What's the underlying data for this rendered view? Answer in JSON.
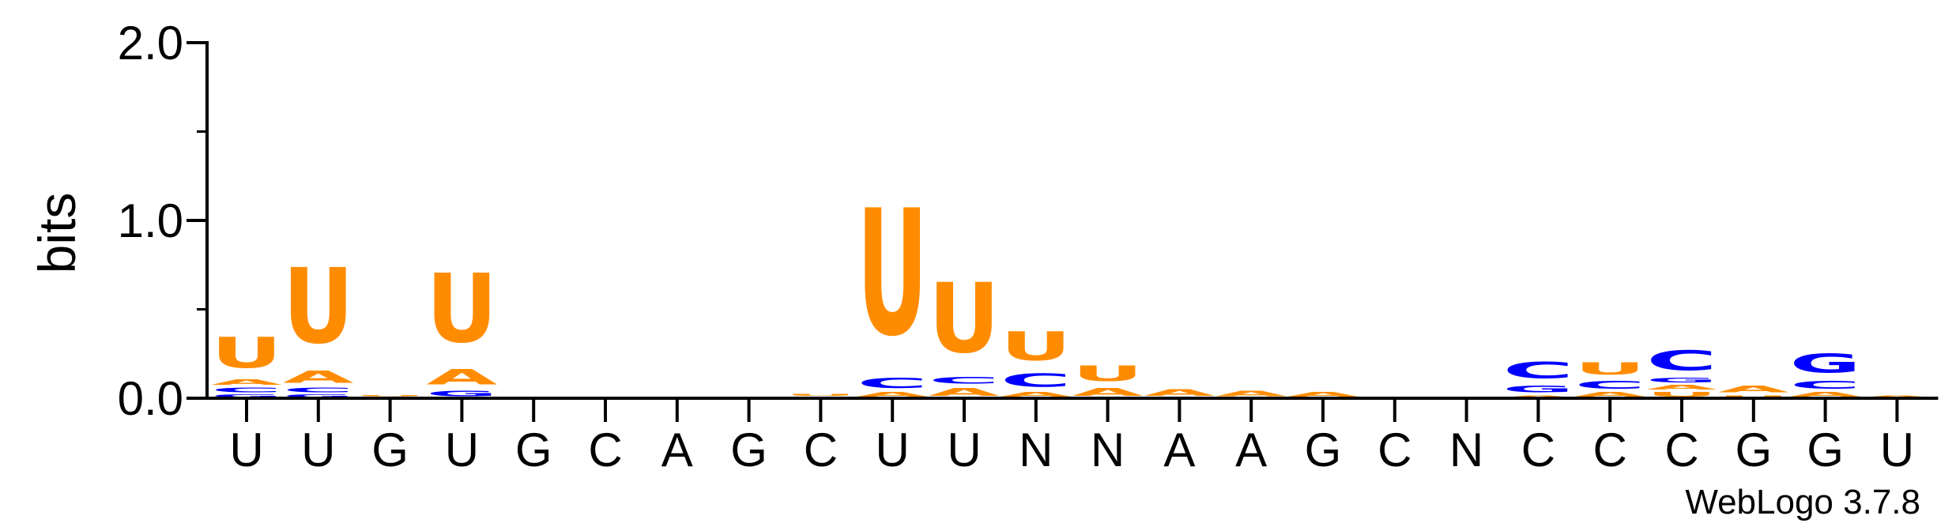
{
  "chart_data": {
    "type": "sequence-logo",
    "ylabel": "bits",
    "ylim": [
      0,
      2.0
    ],
    "yticks": [
      "0.0",
      "1.0",
      "2.0"
    ],
    "x_labels": [
      "U",
      "U",
      "G",
      "U",
      "G",
      "C",
      "A",
      "G",
      "C",
      "U",
      "U",
      "N",
      "N",
      "A",
      "A",
      "G",
      "C",
      "N",
      "C",
      "C",
      "C",
      "G",
      "G",
      "U"
    ],
    "credit": "WebLogo 3.7.8",
    "colors": {
      "U": "#ff8c00",
      "A": "#ff8c00",
      "C": "#0000ff",
      "G": "#0000ff"
    },
    "stacks": [
      [
        {
          "l": "G",
          "h": 0.025
        },
        {
          "l": "C",
          "h": 0.04
        },
        {
          "l": "A",
          "h": 0.05
        },
        {
          "l": "U",
          "h": 0.28
        }
      ],
      [
        {
          "l": "G",
          "h": 0.025
        },
        {
          "l": "C",
          "h": 0.04
        },
        {
          "l": "A",
          "h": 0.11
        },
        {
          "l": "U",
          "h": 0.68
        }
      ],
      [
        {
          "l": "C",
          "h": 0.01
        },
        {
          "l": "U",
          "h": 0.01
        }
      ],
      [
        {
          "l": "G",
          "h": 0.05
        },
        {
          "l": "A",
          "h": 0.14
        },
        {
          "l": "U",
          "h": 0.62
        }
      ],
      [],
      [],
      [
        {
          "l": "A",
          "h": 0.01
        }
      ],
      [],
      [
        {
          "l": "A",
          "h": 0.01
        },
        {
          "l": "U",
          "h": 0.02
        }
      ],
      [
        {
          "l": "A",
          "h": 0.04
        },
        {
          "l": "C",
          "h": 0.09
        },
        {
          "l": "U",
          "h": 1.14
        }
      ],
      [
        {
          "l": "A",
          "h": 0.07
        },
        {
          "l": "C",
          "h": 0.06
        },
        {
          "l": "U",
          "h": 0.63
        }
      ],
      [
        {
          "l": "A",
          "h": 0.04
        },
        {
          "l": "C",
          "h": 0.12
        },
        {
          "l": "U",
          "h": 0.26
        }
      ],
      [
        {
          "l": "A",
          "h": 0.07
        },
        {
          "l": "U",
          "h": 0.14
        }
      ],
      [
        {
          "l": "A",
          "h": 0.06
        }
      ],
      [
        {
          "l": "A",
          "h": 0.05
        }
      ],
      [
        {
          "l": "A",
          "h": 0.04
        }
      ],
      [],
      [],
      [
        {
          "l": "A",
          "h": 0.02
        },
        {
          "l": "G",
          "h": 0.06
        },
        {
          "l": "C",
          "h": 0.15
        }
      ],
      [
        {
          "l": "A",
          "h": 0.04
        },
        {
          "l": "C",
          "h": 0.07
        },
        {
          "l": "U",
          "h": 0.11
        }
      ],
      [
        {
          "l": "U",
          "h": 0.04
        },
        {
          "l": "A",
          "h": 0.04
        },
        {
          "l": "G",
          "h": 0.04
        },
        {
          "l": "C",
          "h": 0.18
        }
      ],
      [
        {
          "l": "U",
          "h": 0.02
        },
        {
          "l": "A",
          "h": 0.06
        }
      ],
      [
        {
          "l": "A",
          "h": 0.04
        },
        {
          "l": "C",
          "h": 0.07
        },
        {
          "l": "G",
          "h": 0.17
        }
      ],
      [
        {
          "l": "A",
          "h": 0.02
        }
      ]
    ]
  }
}
